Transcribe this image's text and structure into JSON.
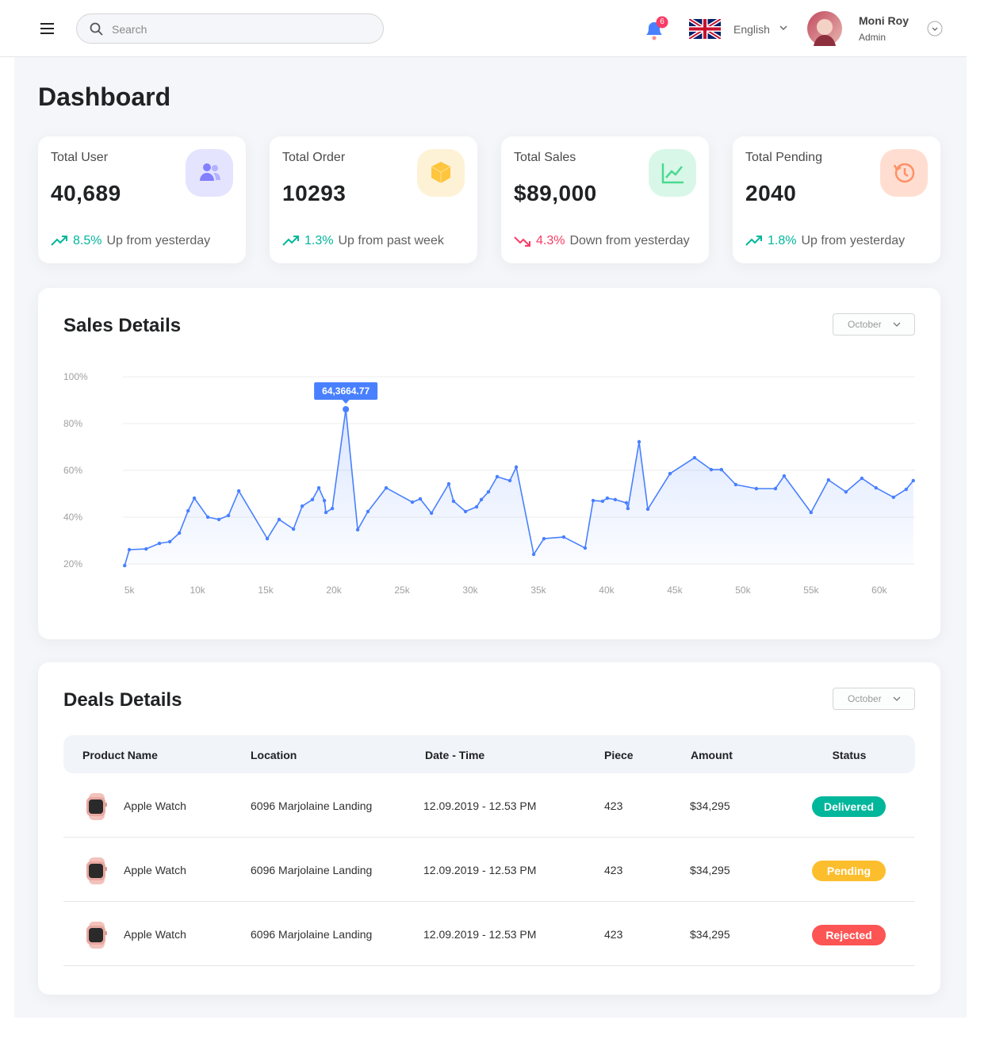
{
  "header": {
    "search_placeholder": "Search",
    "notification_count": "6",
    "language": "English",
    "user_name": "Moni Roy",
    "user_role": "Admin"
  },
  "page_title": "Dashboard",
  "stats": [
    {
      "title": "Total User",
      "value": "40,689",
      "change": "8.5%",
      "change_text": "Up from yesterday",
      "trend": "up"
    },
    {
      "title": "Total Order",
      "value": "10293",
      "change": "1.3%",
      "change_text": "Up from past week",
      "trend": "up"
    },
    {
      "title": "Total Sales",
      "value": "$89,000",
      "change": "4.3%",
      "change_text": "Down from yesterday",
      "trend": "down"
    },
    {
      "title": "Total Pending",
      "value": "2040",
      "change": "1.8%",
      "change_text": "Up from yesterday",
      "trend": "up"
    }
  ],
  "sales": {
    "title": "Sales Details",
    "filter": "October"
  },
  "chart_data": {
    "type": "area",
    "annotation": "64,3664.77",
    "color": "#4880ff",
    "x": [
      4830,
      5170,
      6400,
      7380,
      8140,
      8840,
      9480,
      9940,
      10930,
      11740,
      12440,
      13200,
      15290,
      16160,
      17210,
      17850,
      18600,
      19070,
      19480,
      19590,
      20060,
      21050,
      21920,
      22670,
      24010,
      25930,
      26510,
      27330,
      28600,
      28950,
      29830,
      30640,
      30990,
      31510,
      32150,
      33080,
      33550,
      34830,
      35580,
      37030,
      38600,
      39190,
      39880,
      40230,
      40810,
      41630,
      41740,
      42560,
      43200,
      44830,
      46630,
      47850,
      48600,
      49650,
      51160,
      52560,
      53200,
      55170,
      56450,
      57730,
      58900,
      59940,
      61220,
      62150,
      62670
    ],
    "values": [
      19.3,
      26.1,
      26.4,
      28.8,
      29.5,
      33.2,
      42.7,
      48.1,
      40.0,
      39.0,
      40.7,
      51.2,
      30.8,
      39.0,
      34.9,
      44.7,
      47.5,
      52.5,
      47.1,
      42.0,
      43.7,
      86.1,
      34.6,
      42.4,
      52.5,
      46.4,
      47.8,
      41.7,
      54.2,
      46.8,
      42.4,
      44.4,
      47.5,
      50.8,
      57.3,
      55.6,
      61.4,
      24.1,
      30.8,
      31.5,
      26.8,
      47.1,
      46.8,
      48.1,
      47.5,
      46.1,
      43.7,
      72.2,
      43.4,
      58.6,
      65.4,
      60.3,
      60.3,
      53.9,
      52.2,
      52.2,
      57.6,
      42.0,
      55.9,
      50.8,
      56.6,
      52.5,
      48.5,
      51.9,
      55.6
    ],
    "xlim": [
      4700,
      62800
    ],
    "ylim": [
      20,
      100
    ],
    "xticks": [
      {
        "value": 5000,
        "label": "5k"
      },
      {
        "value": 10000,
        "label": "10k"
      },
      {
        "value": 15000,
        "label": "15k"
      },
      {
        "value": 20000,
        "label": "20k"
      },
      {
        "value": 25000,
        "label": "25k"
      },
      {
        "value": 30000,
        "label": "30k"
      },
      {
        "value": 35000,
        "label": "35k"
      },
      {
        "value": 40000,
        "label": "40k"
      },
      {
        "value": 45000,
        "label": "45k"
      },
      {
        "value": 50000,
        "label": "50k"
      },
      {
        "value": 55000,
        "label": "55k"
      },
      {
        "value": 60000,
        "label": "60k"
      }
    ],
    "yticks": [
      {
        "value": 20,
        "label": "20%"
      },
      {
        "value": 40,
        "label": "40%"
      },
      {
        "value": 60,
        "label": "60%"
      },
      {
        "value": 80,
        "label": "80%"
      },
      {
        "value": 100,
        "label": "100%"
      }
    ],
    "grid": true
  },
  "deals": {
    "title": "Deals Details",
    "filter": "October",
    "columns": [
      "Product Name",
      "Location",
      "Date - Time",
      "Piece",
      "Amount",
      "Status"
    ],
    "rows": [
      {
        "product": "Apple Watch",
        "location": "6096 Marjolaine Landing",
        "date_time": "12.09.2019 - 12.53 PM",
        "piece": "423",
        "amount": "$34,295",
        "status": "Delivered",
        "status_color": "#00b69b"
      },
      {
        "product": "Apple Watch",
        "location": "6096 Marjolaine Landing",
        "date_time": "12.09.2019 - 12.53 PM",
        "piece": "423",
        "amount": "$34,295",
        "status": "Pending",
        "status_color": "#fcbe2d"
      },
      {
        "product": "Apple Watch",
        "location": "6096 Marjolaine Landing",
        "date_time": "12.09.2019 - 12.53 PM",
        "piece": "423",
        "amount": "$34,295",
        "status": "Rejected",
        "status_color": "#fd5454"
      }
    ]
  }
}
